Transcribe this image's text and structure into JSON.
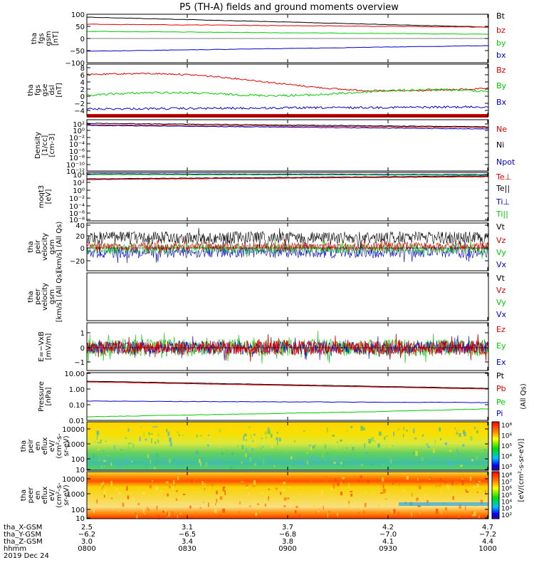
{
  "title": "P5 (TH-A) fields and ground moments overview",
  "colors": {
    "black": "#000000",
    "red": "#e00000",
    "green": "#00cc00",
    "blue": "#0000cc"
  },
  "panels": [
    {
      "id": "p1",
      "ylabel": [
        "tha",
        "fgs",
        "gsm",
        "[nT]"
      ],
      "yticks": [
        "100",
        "50",
        "0",
        "−50",
        "−100"
      ],
      "legend": [
        {
          "text": "Bt",
          "color": "black"
        },
        {
          "text": "bz",
          "color": "red"
        },
        {
          "text": "by",
          "color": "green"
        },
        {
          "text": "bx",
          "color": "blue"
        }
      ]
    },
    {
      "id": "p2",
      "ylabel": [
        "tha",
        "fgs",
        "gse",
        "dsl",
        "[nT]"
      ],
      "yticks": [
        "8",
        "6",
        "4",
        "2",
        "0",
        "−2",
        "−4"
      ],
      "legend": [
        {
          "text": "Bz",
          "color": "red"
        },
        {
          "text": "By",
          "color": "green"
        },
        {
          "text": "Bx",
          "color": "blue"
        }
      ]
    },
    {
      "id": "p3",
      "ylabel": [
        "Density",
        "[1/cc]",
        "[cm-3]"
      ],
      "yticks": [
        "10²",
        "10⁰",
        "10⁻²",
        "10⁻⁴",
        "10⁻⁶",
        "10⁻⁸",
        "10⁻¹⁰",
        "10⁻¹²"
      ],
      "legend": [
        {
          "text": "Ne",
          "color": "red"
        },
        {
          "text": "Ni",
          "color": "black"
        },
        {
          "text": "Npot",
          "color": "blue"
        }
      ]
    },
    {
      "id": "p4",
      "ylabel": [
        "moqt3",
        "[eV]"
      ],
      "yticks": [
        "10⁴",
        "10²",
        "10⁰",
        "10⁻²",
        "10⁻⁴",
        "10⁻⁶",
        "10⁻⁸"
      ],
      "legend": [
        {
          "text": "Te⊥",
          "color": "red"
        },
        {
          "text": "Te||",
          "color": "black"
        },
        {
          "text": "Ti⊥",
          "color": "blue"
        },
        {
          "text": "Ti||",
          "color": "green"
        }
      ]
    },
    {
      "id": "p5",
      "ylabel": [
        "tha",
        "peir",
        "velocity",
        "gsm",
        "[km/s] (All Qs)"
      ],
      "yticks": [
        "40",
        "20",
        "0",
        "−20"
      ],
      "legend": [
        {
          "text": "Vt",
          "color": "black"
        },
        {
          "text": "Vz",
          "color": "red"
        },
        {
          "text": "Vy",
          "color": "green"
        },
        {
          "text": "Vx",
          "color": "blue"
        }
      ]
    },
    {
      "id": "p6",
      "ylabel": [
        "tha",
        "peer",
        "velocity",
        "gsm",
        "[km/s] (All Qs)"
      ],
      "yticks": [],
      "legend": [
        {
          "text": "Vt",
          "color": "black"
        },
        {
          "text": "Vz",
          "color": "red"
        },
        {
          "text": "Vy",
          "color": "green"
        },
        {
          "text": "Vx",
          "color": "blue"
        }
      ]
    },
    {
      "id": "p7",
      "ylabel": [
        "E=−VxB",
        "[mV/m]"
      ],
      "yticks": [
        "1",
        "0",
        "−1"
      ],
      "legend": [
        {
          "text": "Ez",
          "color": "red"
        },
        {
          "text": "Ey",
          "color": "green"
        },
        {
          "text": "Ex",
          "color": "blue"
        }
      ]
    },
    {
      "id": "p8",
      "ylabel": [
        "Pressure",
        "[nPa]"
      ],
      "yticks": [
        "10.00",
        "1.00",
        "0.10",
        "0.01"
      ],
      "legend": [
        {
          "text": "Pt",
          "color": "black"
        },
        {
          "text": "Pb",
          "color": "red"
        },
        {
          "text": "Pe",
          "color": "green"
        },
        {
          "text": "Pi",
          "color": "blue"
        }
      ],
      "right_note": "(All Qs)"
    },
    {
      "id": "p9",
      "ylabel": [
        "tha",
        "peir",
        "en",
        "eflux",
        "eV/",
        "(cm²-s-",
        "sr-eV)"
      ],
      "yticks": [
        "10000",
        "1000",
        "100",
        "10"
      ],
      "colorbar": {
        "ticks": [
          "10⁸",
          "10⁶",
          "10⁵",
          "10⁴",
          "10³"
        ],
        "label": "[eV/(cm²-s-sr-eV)]"
      }
    },
    {
      "id": "p10",
      "ylabel": [
        "tha",
        "peer",
        "en",
        "eflux",
        "eV/",
        "(cm²-s-",
        "sr-eV)"
      ],
      "yticks": [
        "10000",
        "1000",
        "100",
        "10"
      ],
      "colorbar": {
        "ticks": [
          "10⁸",
          "10⁷",
          "10⁶",
          "10⁵",
          "10⁴",
          "10³",
          "10²"
        ],
        "label": "[eV/(cm²-s-sr-eV)]"
      }
    }
  ],
  "xaxis": {
    "rows": [
      {
        "label": "tha_X-GSM",
        "values": [
          "2.5",
          "3.1",
          "3.7",
          "4.2",
          "4.7"
        ]
      },
      {
        "label": "tha_Y-GSM",
        "values": [
          "−6.2",
          "−6.5",
          "−6.8",
          "−7.0",
          "−7.2"
        ]
      },
      {
        "label": "tha_Z-GSM",
        "values": [
          "3.0",
          "3.4",
          "3.8",
          "4.1",
          "4.4"
        ]
      },
      {
        "label": "hhmm",
        "values": [
          "0800",
          "0830",
          "0900",
          "0930",
          "1000"
        ]
      }
    ],
    "date": "2019 Dec 24"
  },
  "chart_data": {
    "type": "line",
    "title": "P5 (TH-A) fields and ground moments overview",
    "x": [
      "0800",
      "0830",
      "0900",
      "0930",
      "1000"
    ],
    "series": [
      {
        "name": "Bt",
        "values": [
          85,
          75,
          64,
          55,
          47
        ]
      },
      {
        "name": "bz",
        "values": [
          55,
          52,
          48,
          44,
          40
        ]
      },
      {
        "name": "by",
        "values": [
          32,
          30,
          27,
          25,
          22
        ]
      },
      {
        "name": "bx",
        "values": [
          -55,
          -45,
          -38,
          -30,
          -24
        ]
      },
      {
        "name": "Bz",
        "values": [
          5,
          4,
          3,
          2,
          1
        ]
      },
      {
        "name": "By",
        "values": [
          0,
          1,
          1.5,
          1,
          1
        ]
      },
      {
        "name": "Bx",
        "values": [
          -3.5,
          -3,
          -3,
          -3,
          -2.5
        ]
      },
      {
        "name": "Pt",
        "values": [
          3.0,
          2.2,
          1.7,
          1.3,
          1.0
        ]
      },
      {
        "name": "Pb",
        "values": [
          2.7,
          2.0,
          1.5,
          1.2,
          0.9
        ]
      },
      {
        "name": "Pi",
        "values": [
          0.17,
          0.16,
          0.15,
          0.14,
          0.13
        ]
      },
      {
        "name": "Pe",
        "values": [
          0.02,
          0.02,
          0.02,
          0.03,
          0.04
        ]
      }
    ]
  }
}
